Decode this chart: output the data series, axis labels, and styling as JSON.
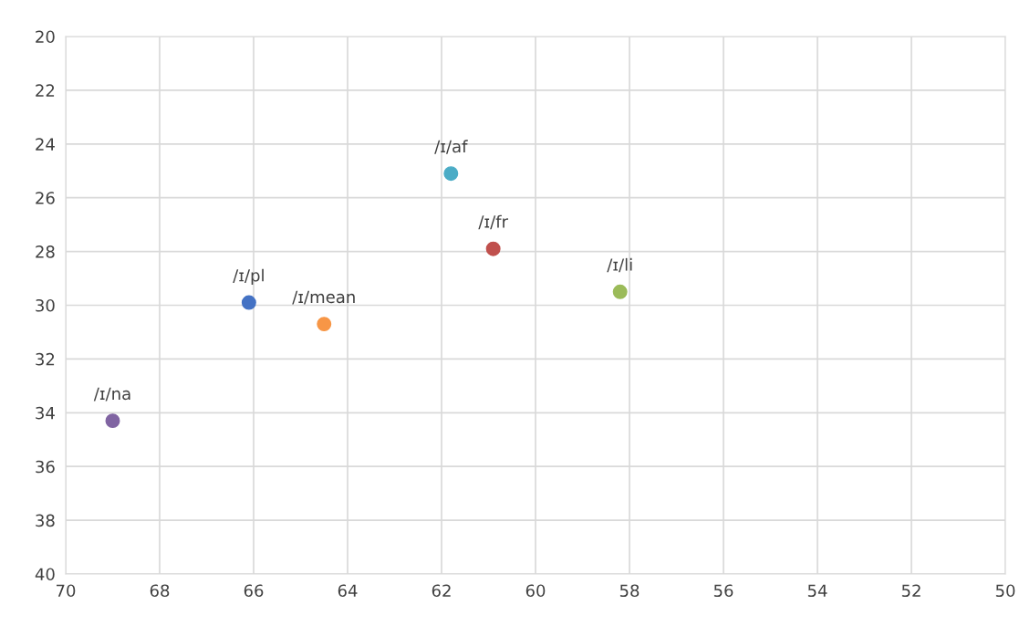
{
  "chart_data": {
    "type": "scatter",
    "series": [
      {
        "name": "/ɪ/na",
        "color": "#8064a2",
        "x": [
          69.0
        ],
        "values": [
          34.3
        ]
      },
      {
        "name": "/ɪ/pl",
        "color": "#4472c4",
        "x": [
          66.1
        ],
        "values": [
          29.9
        ]
      },
      {
        "name": "/ɪ/mean",
        "color": "#f79646",
        "x": [
          64.5
        ],
        "values": [
          30.7
        ]
      },
      {
        "name": "/ɪ/af",
        "color": "#4bacc6",
        "x": [
          61.8
        ],
        "values": [
          25.1
        ]
      },
      {
        "name": "/ɪ/fr",
        "color": "#c0504d",
        "x": [
          60.9
        ],
        "values": [
          27.9
        ]
      },
      {
        "name": "/ɪ/li",
        "color": "#9bbb59",
        "x": [
          58.2
        ],
        "values": [
          29.5
        ]
      }
    ],
    "xlim": [
      70,
      50
    ],
    "xticks": [
      70,
      68,
      66,
      64,
      62,
      60,
      58,
      56,
      54,
      52,
      50
    ],
    "ylim": [
      40,
      20
    ],
    "yticks": [
      20,
      22,
      24,
      26,
      28,
      30,
      32,
      34,
      36,
      38,
      40
    ],
    "grid": true,
    "marker": "circle",
    "legend": false
  }
}
